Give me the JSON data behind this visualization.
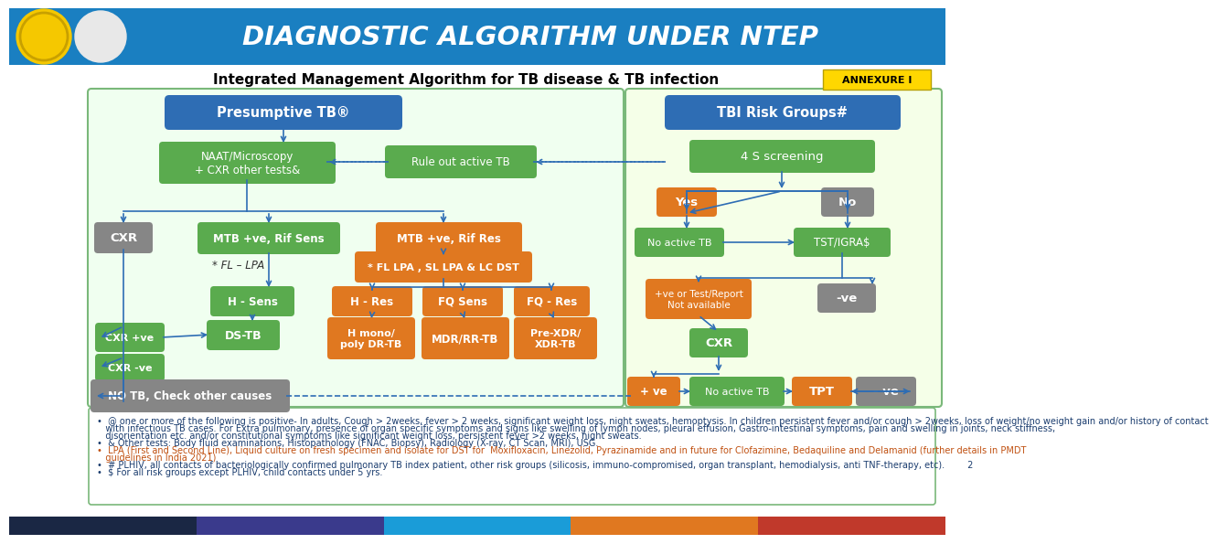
{
  "title": "DIAGNOSTIC ALGORITHM UNDER NTEP",
  "subtitle": "Integrated Management Algorithm for TB disease & TB infection",
  "annexure": "ANNEXURE I",
  "header_bg": "#1a7fc1",
  "bg_color": "#FFFFFF",
  "left_bg": "#f0fff0",
  "right_bg": "#f5ffe8",
  "border_color": "#7ab87a",
  "blue_hdr": "#2e6db4",
  "green_box": "#5aab4e",
  "orange_box": "#e07820",
  "gray_box": "#868686",
  "arrow_color": "#2e6db4",
  "footer_colors": [
    "#1a2744",
    "#3a3a8c",
    "#1a9cd8",
    "#e07820",
    "#c0392b"
  ],
  "footnote_lines": [
    [
      "#1a3c6e",
      7.0,
      "•  @ one or more of the following is positive- In adults, Cough > 2weeks, fever > 2 weeks, significant weight loss, night sweats, hemoptysis. In children persistent fever and/or cough > 2weeks, loss of weight/no weight gain and/or history of contact"
    ],
    [
      "#1a3c6e",
      7.0,
      "   with infectious TB cases. For Extra pulmonary, presence of organ specific symptoms and signs like swelling of lymph nodes, pleural effusion, Gastro-intestinal symptoms, pain and swelling in joints, neck stiffness,"
    ],
    [
      "#1a3c6e",
      7.0,
      "   disorientation etc. and/or constitutional symptoms like significant weight loss, persistent fever >2 weeks, night sweats."
    ],
    [
      "#1a3c6e",
      7.0,
      "•  & Other tests: Body fluid examinations, Histopathology (FNAC, Biopsy), Radiology (X-ray, CT Scan, MRI), USG."
    ],
    [
      "#c05010",
      7.0,
      "•  LPA (First and Second Line), Liquid culture on fresh specimen and isolate for DST for  Moxifloxacin, Linezolid, Pyrazinamide and in future for Clofazimine, Bedaquiline and Delamanid (further details in PMDT"
    ],
    [
      "#c05010",
      7.0,
      "   guidelines in India 2021)"
    ],
    [
      "#1a3c6e",
      7.0,
      "•  # PLHIV, all contacts of bacteriologically confirmed pulmonary TB index patient, other risk groups (silicosis, immuno-compromised, organ transplant, hemodialysis, anti TNF-therapy, etc).        2"
    ],
    [
      "#1a3c6e",
      7.0,
      "•  $ For all risk groups except PLHIV, child contacts under 5 yrs."
    ]
  ]
}
